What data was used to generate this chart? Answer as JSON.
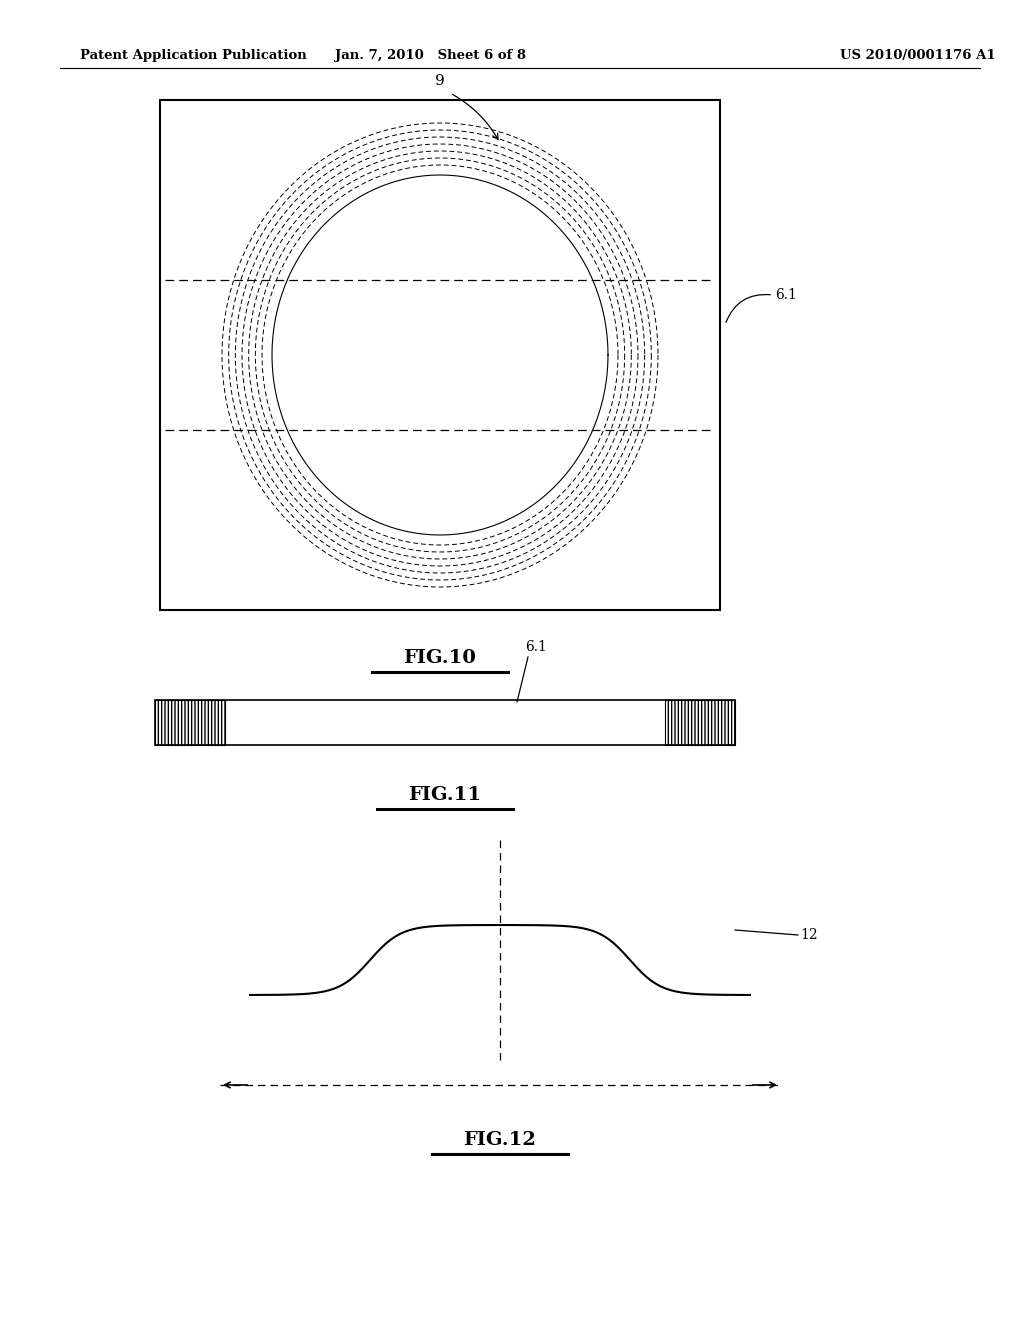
{
  "bg_color": "#ffffff",
  "header_left": "Patent Application Publication",
  "header_mid": "Jan. 7, 2010   Sheet 6 of 8",
  "header_right": "US 2010/0001176 A1",
  "fig10_label": "FIG.10",
  "fig11_label": "FIG.11",
  "fig12_label": "FIG.12",
  "label_9": "9",
  "label_6_1_fig10": "6.1",
  "label_6_1_fig11": "6.1",
  "label_12": "12"
}
